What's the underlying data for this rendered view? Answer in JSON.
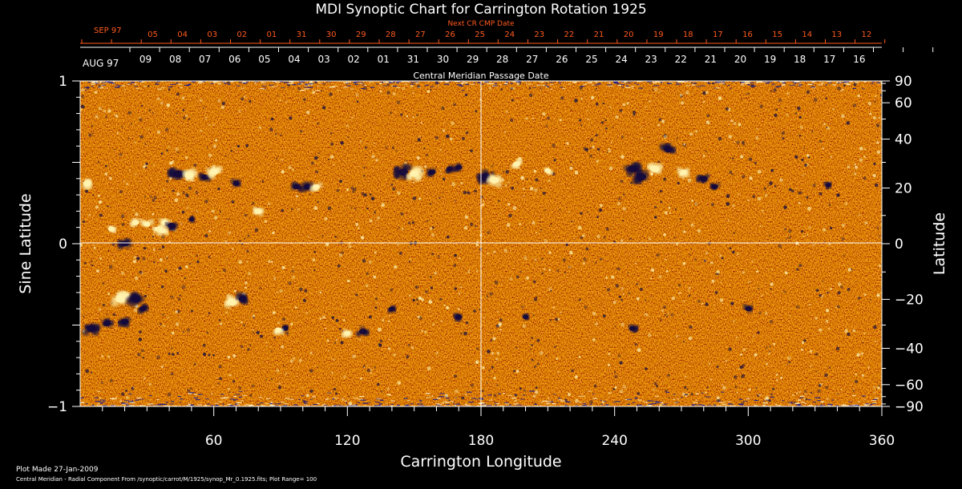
{
  "chart_data": {
    "type": "heatmap",
    "title": "MDI Synoptic Chart for Carrington Rotation 1925",
    "xlabel": "Carrington Longitude",
    "ylabel_left": "Sine Latitude",
    "ylabel_right": "Latitude",
    "xlim": [
      0,
      360
    ],
    "ylim": [
      -1,
      1
    ],
    "x_ticks": [
      "60",
      "120",
      "180",
      "240",
      "300",
      "360"
    ],
    "y_left_ticks": [
      "1",
      "0",
      "−1"
    ],
    "y_right_ticks": [
      "90",
      "60",
      "40",
      "20",
      "0",
      "−20",
      "−40",
      "−60",
      "−90"
    ],
    "y_right_values": [
      90,
      60,
      40,
      20,
      0,
      -20,
      -40,
      -60,
      -90
    ],
    "grid": "center-crosshair",
    "top_axis_title": "Next CR CMP Date",
    "top_month_label": "SEP 97",
    "top_dates": [
      "05",
      "04",
      "03",
      "02",
      "01",
      "31",
      "30",
      "29",
      "28",
      "27",
      "26",
      "25",
      "24",
      "23",
      "22",
      "21",
      "20",
      "19",
      "18",
      "17",
      "16",
      "15",
      "14",
      "13",
      "12"
    ],
    "bottom_axis_title": "Central Meridian Passage Date",
    "bottom_month_label": "AUG 97",
    "bottom_dates": [
      "09",
      "08",
      "07",
      "06",
      "05",
      "04",
      "03",
      "02",
      "01",
      "31",
      "30",
      "29",
      "28",
      "27",
      "26",
      "25",
      "24",
      "23",
      "22",
      "21",
      "20",
      "19",
      "18",
      "17",
      "16"
    ],
    "plot_range": 100,
    "colors": {
      "background": "#000000",
      "base": "#e8521a",
      "positive": "#fff3b0",
      "negative": "#140a3c",
      "accent_text": "#ff5a1e"
    },
    "active_regions": [
      {
        "lon": 44,
        "sinlat": 0.43,
        "polarity": "negative",
        "strength": 1.0
      },
      {
        "lon": 49,
        "sinlat": 0.42,
        "polarity": "positive",
        "strength": 0.9
      },
      {
        "lon": 3,
        "sinlat": 0.37,
        "polarity": "positive",
        "strength": 0.7
      },
      {
        "lon": 56,
        "sinlat": 0.41,
        "polarity": "negative",
        "strength": 0.6
      },
      {
        "lon": 60,
        "sinlat": 0.44,
        "polarity": "positive",
        "strength": 0.8
      },
      {
        "lon": 70,
        "sinlat": 0.37,
        "polarity": "negative",
        "strength": 0.5
      },
      {
        "lon": 20,
        "sinlat": 0.0,
        "polarity": "negative",
        "strength": 0.7
      },
      {
        "lon": 25,
        "sinlat": 0.13,
        "polarity": "positive",
        "strength": 0.6
      },
      {
        "lon": 30,
        "sinlat": 0.12,
        "polarity": "positive",
        "strength": 0.6
      },
      {
        "lon": 38,
        "sinlat": 0.13,
        "polarity": "positive",
        "strength": 0.6
      },
      {
        "lon": 41,
        "sinlat": 0.11,
        "polarity": "negative",
        "strength": 0.7
      },
      {
        "lon": 35,
        "sinlat": 0.09,
        "polarity": "positive",
        "strength": 0.6
      },
      {
        "lon": 37,
        "sinlat": 0.08,
        "polarity": "positive",
        "strength": 0.6
      },
      {
        "lon": 80,
        "sinlat": 0.2,
        "polarity": "positive",
        "strength": 0.6
      },
      {
        "lon": 97,
        "sinlat": 0.35,
        "polarity": "negative",
        "strength": 0.6
      },
      {
        "lon": 102,
        "sinlat": 0.35,
        "polarity": "negative",
        "strength": 0.7
      },
      {
        "lon": 106,
        "sinlat": 0.35,
        "polarity": "positive",
        "strength": 0.6
      },
      {
        "lon": 145,
        "sinlat": 0.44,
        "polarity": "negative",
        "strength": 1.0
      },
      {
        "lon": 150,
        "sinlat": 0.43,
        "polarity": "positive",
        "strength": 0.9
      },
      {
        "lon": 158,
        "sinlat": 0.44,
        "polarity": "negative",
        "strength": 0.6
      },
      {
        "lon": 166,
        "sinlat": 0.46,
        "polarity": "negative",
        "strength": 0.5
      },
      {
        "lon": 170,
        "sinlat": 0.47,
        "polarity": "negative",
        "strength": 0.5
      },
      {
        "lon": 182,
        "sinlat": 0.41,
        "polarity": "negative",
        "strength": 1.0
      },
      {
        "lon": 186,
        "sinlat": 0.39,
        "polarity": "positive",
        "strength": 0.9
      },
      {
        "lon": 196,
        "sinlat": 0.49,
        "polarity": "positive",
        "strength": 0.6
      },
      {
        "lon": 210,
        "sinlat": 0.45,
        "polarity": "positive",
        "strength": 0.5
      },
      {
        "lon": 248,
        "sinlat": 0.46,
        "polarity": "negative",
        "strength": 0.9
      },
      {
        "lon": 252,
        "sinlat": 0.41,
        "polarity": "negative",
        "strength": 1.0
      },
      {
        "lon": 258,
        "sinlat": 0.46,
        "polarity": "positive",
        "strength": 0.9
      },
      {
        "lon": 264,
        "sinlat": 0.58,
        "polarity": "negative",
        "strength": 0.8
      },
      {
        "lon": 271,
        "sinlat": 0.44,
        "polarity": "positive",
        "strength": 0.6
      },
      {
        "lon": 280,
        "sinlat": 0.4,
        "polarity": "negative",
        "strength": 0.7
      },
      {
        "lon": 285,
        "sinlat": 0.35,
        "polarity": "negative",
        "strength": 0.5
      },
      {
        "lon": 336,
        "sinlat": 0.36,
        "polarity": "negative",
        "strength": 0.4
      },
      {
        "lon": 50,
        "sinlat": 0.15,
        "polarity": "negative",
        "strength": 0.4
      },
      {
        "lon": 14,
        "sinlat": 0.09,
        "polarity": "positive",
        "strength": 0.5
      },
      {
        "lon": 18,
        "sinlat": -0.34,
        "polarity": "positive",
        "strength": 1.0
      },
      {
        "lon": 25,
        "sinlat": -0.34,
        "polarity": "negative",
        "strength": 1.0
      },
      {
        "lon": 5,
        "sinlat": -0.52,
        "polarity": "negative",
        "strength": 0.9
      },
      {
        "lon": 12,
        "sinlat": -0.49,
        "polarity": "negative",
        "strength": 0.7
      },
      {
        "lon": 20,
        "sinlat": -0.48,
        "polarity": "negative",
        "strength": 0.7
      },
      {
        "lon": 28,
        "sinlat": -0.4,
        "polarity": "negative",
        "strength": 0.6
      },
      {
        "lon": 68,
        "sinlat": -0.36,
        "polarity": "positive",
        "strength": 0.9
      },
      {
        "lon": 73,
        "sinlat": -0.34,
        "polarity": "negative",
        "strength": 0.8
      },
      {
        "lon": 92,
        "sinlat": -0.52,
        "polarity": "negative",
        "strength": 0.5
      },
      {
        "lon": 89,
        "sinlat": -0.53,
        "polarity": "positive",
        "strength": 0.5
      },
      {
        "lon": 120,
        "sinlat": -0.55,
        "polarity": "positive",
        "strength": 0.5
      },
      {
        "lon": 127,
        "sinlat": -0.54,
        "polarity": "negative",
        "strength": 0.7
      },
      {
        "lon": 140,
        "sinlat": -0.4,
        "polarity": "negative",
        "strength": 0.5
      },
      {
        "lon": 170,
        "sinlat": -0.45,
        "polarity": "negative",
        "strength": 0.5
      },
      {
        "lon": 200,
        "sinlat": -0.45,
        "polarity": "negative",
        "strength": 0.4
      },
      {
        "lon": 248,
        "sinlat": -0.52,
        "polarity": "negative",
        "strength": 0.5
      },
      {
        "lon": 300,
        "sinlat": -0.4,
        "polarity": "negative",
        "strength": 0.5
      }
    ]
  },
  "footer": {
    "plot_made": "Plot Made 27-Jan-2009",
    "caption": "Central Meridian - Radial Component From /synoptic/carrot/M/1925/synop_Mr_0.1925.fits; Plot Range=  100"
  }
}
